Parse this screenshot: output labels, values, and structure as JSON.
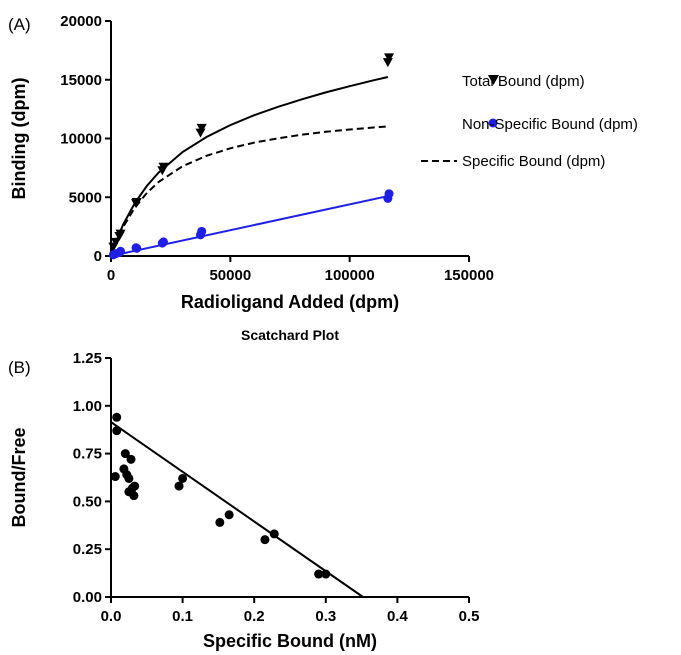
{
  "panel_a_label": "(A)",
  "panel_b_label": "(B)",
  "chart_data": [
    {
      "type": "scatter",
      "title": "",
      "xlabel": "Radioligand Added (dpm)",
      "ylabel": "Binding (dpm)",
      "xlim": [
        0,
        150000
      ],
      "ylim": [
        0,
        20000
      ],
      "xticks": [
        0,
        50000,
        100000,
        150000
      ],
      "xtick_labels": [
        "0",
        "50000",
        "100000",
        "150000"
      ],
      "yticks": [
        0,
        5000,
        10000,
        15000,
        20000
      ],
      "ytick_labels": [
        "0",
        "5000",
        "10000",
        "15000",
        "20000"
      ],
      "legend_position": "right",
      "series": [
        {
          "name": "Total Bound (dpm)",
          "marker": "triangle-down",
          "color": "#000000",
          "points": [
            [
              1000,
              800
            ],
            [
              2000,
              1200
            ],
            [
              3500,
              1700
            ],
            [
              4000,
              1900
            ],
            [
              10500,
              4500
            ],
            [
              10800,
              4600
            ],
            [
              21500,
              7300
            ],
            [
              22000,
              7600
            ],
            [
              37500,
              10500
            ],
            [
              38000,
              10900
            ],
            [
              116000,
              16500
            ],
            [
              116500,
              16900
            ]
          ]
        },
        {
          "name": "Non-Specific Bound (dpm)",
          "marker": "circle",
          "color": "#1f1fe6",
          "points": [
            [
              1000,
              100
            ],
            [
              2000,
              200
            ],
            [
              3500,
              300
            ],
            [
              4000,
              400
            ],
            [
              10500,
              700
            ],
            [
              10800,
              650
            ],
            [
              21500,
              1100
            ],
            [
              22000,
              1200
            ],
            [
              37500,
              1800
            ],
            [
              38000,
              2100
            ],
            [
              116000,
              4900
            ],
            [
              116500,
              5300
            ]
          ]
        }
      ],
      "fits": [
        {
          "name": "Total Bound (dpm) fit",
          "style": "solid",
          "color": "#000000",
          "x": [
            0,
            2000,
            5000,
            10000,
            15000,
            20000,
            30000,
            40000,
            50000,
            60000,
            70000,
            80000,
            90000,
            100000,
            110000,
            116000
          ],
          "y": [
            0,
            1160,
            2630,
            4520,
            5960,
            7110,
            8850,
            10130,
            11140,
            11980,
            12700,
            13340,
            13920,
            14450,
            14950,
            15230
          ]
        },
        {
          "name": "Specific Bound (dpm)",
          "style": "dashed",
          "color": "#000000",
          "x": [
            0,
            2000,
            5000,
            10000,
            15000,
            20000,
            30000,
            40000,
            50000,
            60000,
            70000,
            80000,
            90000,
            100000,
            110000,
            116000
          ],
          "y": [
            0,
            1080,
            2430,
            4120,
            5360,
            6310,
            7640,
            8530,
            9170,
            9650,
            10020,
            10320,
            10570,
            10770,
            10940,
            11030
          ]
        },
        {
          "name": "Non-Specific Bound (dpm) fit",
          "style": "solid",
          "color": "#1f1fe6",
          "x": [
            0,
            116000
          ],
          "y": [
            0,
            5100
          ]
        }
      ]
    },
    {
      "type": "scatter",
      "title": "Scatchard Plot",
      "xlabel": "Specific Bound (nM)",
      "ylabel": "Bound/Free",
      "xlim": [
        0,
        0.5
      ],
      "ylim": [
        0,
        1.25
      ],
      "xticks": [
        0,
        0.1,
        0.2,
        0.3,
        0.4,
        0.5
      ],
      "xtick_labels": [
        "0.0",
        "0.1",
        "0.2",
        "0.3",
        "0.4",
        "0.5"
      ],
      "yticks": [
        0,
        0.25,
        0.5,
        0.75,
        1.0,
        1.25
      ],
      "ytick_labels": [
        "0.00",
        "0.25",
        "0.50",
        "0.75",
        "1.00",
        "1.25"
      ],
      "series": [
        {
          "name": "",
          "marker": "circle",
          "color": "#000000",
          "points": [
            [
              0.008,
              0.94
            ],
            [
              0.008,
              0.87
            ],
            [
              0.006,
              0.63
            ],
            [
              0.018,
              0.67
            ],
            [
              0.02,
              0.75
            ],
            [
              0.022,
              0.64
            ],
            [
              0.025,
              0.55
            ],
            [
              0.025,
              0.62
            ],
            [
              0.028,
              0.72
            ],
            [
              0.03,
              0.57
            ],
            [
              0.032,
              0.53
            ],
            [
              0.033,
              0.58
            ],
            [
              0.095,
              0.58
            ],
            [
              0.1,
              0.62
            ],
            [
              0.152,
              0.39
            ],
            [
              0.165,
              0.43
            ],
            [
              0.215,
              0.3
            ],
            [
              0.228,
              0.33
            ],
            [
              0.29,
              0.12
            ],
            [
              0.3,
              0.12
            ]
          ]
        }
      ],
      "fits": [
        {
          "name": "Linear fit",
          "style": "solid",
          "color": "#000000",
          "x": [
            0,
            0.352
          ],
          "y": [
            0.915,
            0
          ]
        }
      ]
    }
  ]
}
